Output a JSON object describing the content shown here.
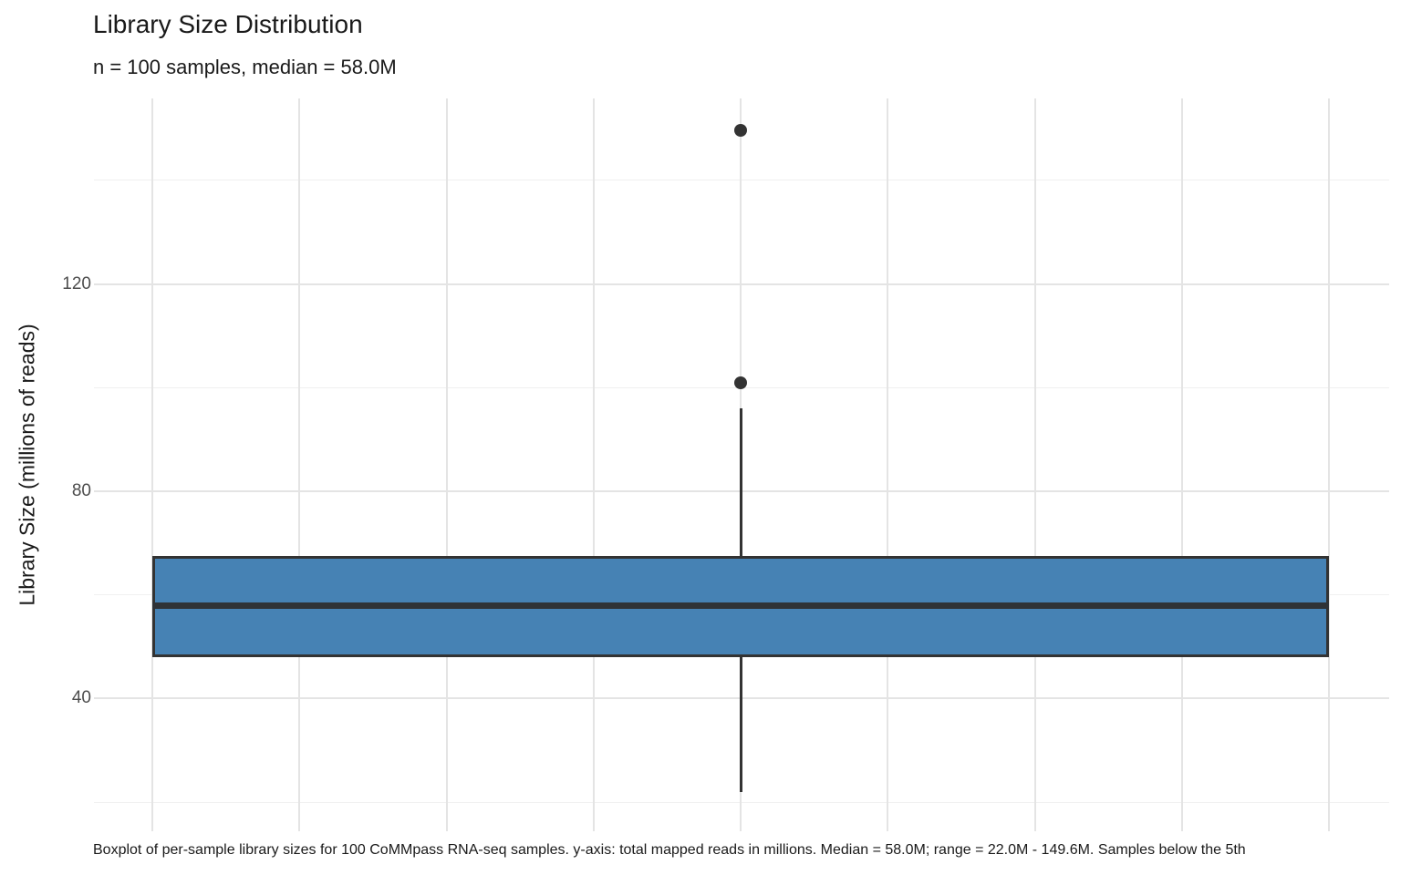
{
  "page": {
    "background": "#ffffff"
  },
  "chart_data": {
    "type": "boxplot",
    "orientation": "vertical",
    "title": "Library Size Distribution",
    "subtitle": "n = 100 samples, median = 58.0M",
    "ylabel": "Library Size (millions of reads)",
    "xlabel": "",
    "caption": "Boxplot of per-sample library sizes for 100 CoMMpass RNA-seq samples. y-axis: total mapped reads in millions. Median = 58.0M; range = 22.0M - 149.6M. Samples below the 5th",
    "n_samples": 100,
    "ylim": [
      14.4,
      155.8
    ],
    "yticks": [
      40,
      80,
      120
    ],
    "y_minor_gridlines": [
      20,
      60,
      100,
      140
    ],
    "grid": true,
    "legend": "none",
    "series": [
      {
        "name": "Library Size",
        "min": 22.0,
        "max": 149.6,
        "stats": {
          "whisker_low": 22.0,
          "q1": 48.0,
          "median": 58.0,
          "q3": 67.5,
          "whisker_high": 96.0,
          "outliers": [
            101.0,
            149.6
          ]
        }
      }
    ],
    "colors": {
      "box_fill": "#4682B4",
      "box_border": "#333333",
      "median_line": "#2f3337",
      "whisker": "#333333",
      "outlier": "#333333",
      "grid_major": "#e4e4e4",
      "grid_minor": "#f0f0f0",
      "tick_label": "#4d4d4d",
      "text": "#1a1a1a"
    }
  }
}
